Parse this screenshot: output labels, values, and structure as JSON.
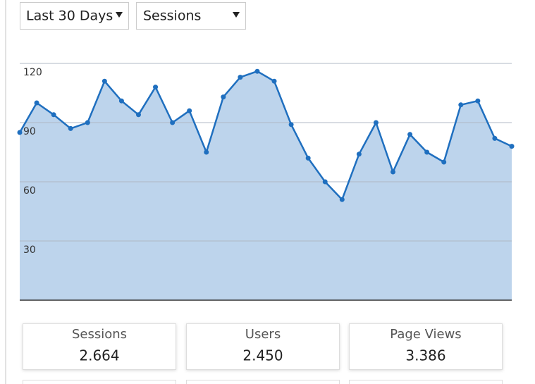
{
  "controls": {
    "range": "Last 30 Days",
    "metric": "Sessions"
  },
  "chart_data": {
    "type": "area",
    "categories": [
      null,
      null,
      null,
      null,
      null,
      null,
      null,
      null,
      null,
      null,
      null,
      null,
      null,
      null,
      null,
      null,
      null,
      null,
      null,
      null,
      null,
      null,
      null,
      null,
      null,
      null,
      null,
      null,
      null,
      null
    ],
    "values": [
      85,
      100,
      94,
      87,
      90,
      111,
      101,
      94,
      108,
      90,
      96,
      75,
      103,
      113,
      116,
      111,
      89,
      72,
      60,
      51,
      74,
      90,
      65,
      84,
      75,
      70,
      99,
      101,
      82,
      78
    ],
    "color": "#1f6fbf",
    "fill_color": "#bdd4ec",
    "ylim": [
      0,
      120
    ],
    "yticks": [
      30,
      60,
      90,
      120
    ],
    "grid": true
  },
  "stats": [
    {
      "label": "Sessions",
      "value": "2.664"
    },
    {
      "label": "Users",
      "value": "2.450"
    },
    {
      "label": "Page Views",
      "value": "3.386"
    }
  ]
}
